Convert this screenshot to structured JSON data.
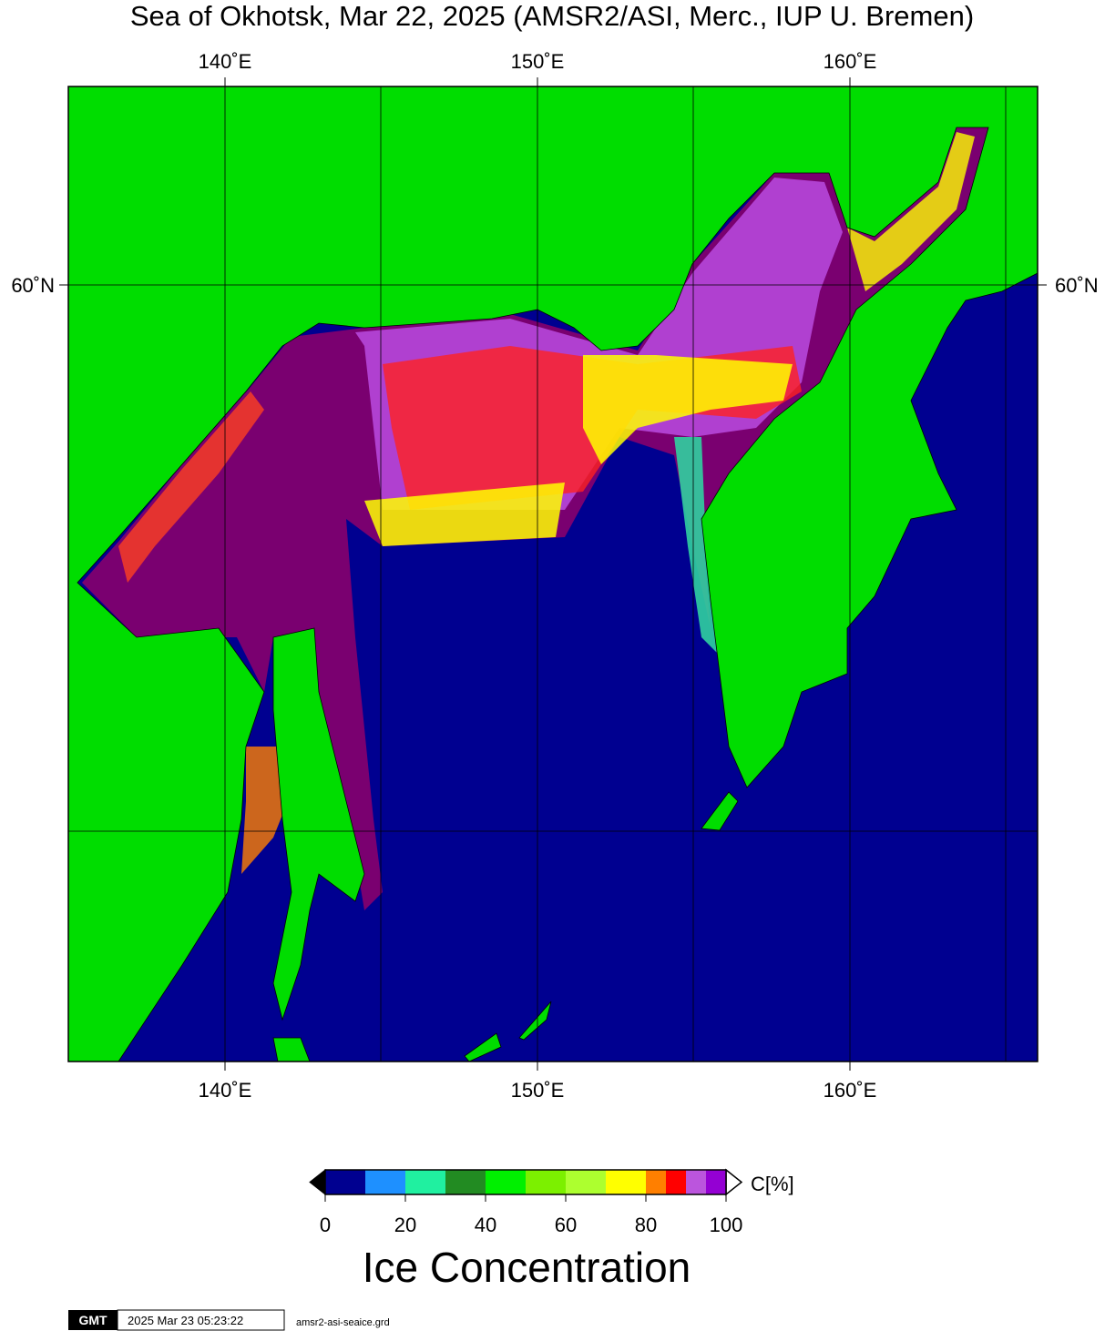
{
  "title": "Sea of Okhotsk, Mar 22, 2025 (AMSR2/ASI, Merc., IUP U. Bremen)",
  "map": {
    "lon_ticks": [
      {
        "value": 140,
        "label": "140˚E"
      },
      {
        "value": 150,
        "label": "150˚E"
      },
      {
        "value": 160,
        "label": "160˚E"
      }
    ],
    "lat_ticks": [
      {
        "value": 60,
        "label": "60˚N"
      }
    ]
  },
  "colorbar": {
    "bounds": [
      0,
      10,
      20,
      30,
      40,
      50,
      60,
      70,
      80,
      85,
      90,
      95,
      100
    ],
    "colors": [
      "#000090",
      "#1e90ff",
      "#20f0a0",
      "#228b22",
      "#00f000",
      "#7cf000",
      "#adff2f",
      "#ffff00",
      "#ff7f00",
      "#ff0000",
      "#bb55dd",
      "#9400d3"
    ],
    "ticks": [
      0,
      20,
      40,
      60,
      80,
      100
    ],
    "unit": "C[%]",
    "title": "Ice Concentration"
  },
  "footer": {
    "logo": "GMT",
    "timestamp": "2025 Mar 23 05:23:22",
    "file": "amsr2-asi-seaice.grd"
  }
}
